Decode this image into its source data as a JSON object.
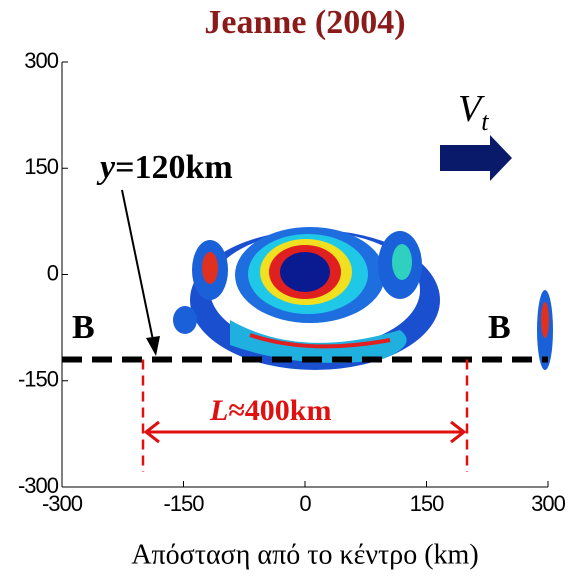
{
  "chart_data": {
    "type": "image",
    "title": "Jeanne (2004)",
    "xlabel": "Απόσταση από το κέντρο (km)",
    "xlim": [
      -300,
      300
    ],
    "ylim": [
      -300,
      300
    ],
    "xticks": [
      -300,
      -150,
      0,
      150,
      300
    ],
    "yticks": [
      -300,
      -150,
      0,
      150,
      300
    ],
    "annotations": {
      "cut_label": {
        "var": "y",
        "rest": "=120km"
      },
      "width_label": {
        "var": "L",
        "rest": "≈400km"
      },
      "motion_label": {
        "var": "V",
        "sub": "t"
      },
      "section_left": "B",
      "section_right": "B"
    },
    "reference_lines": {
      "y": -120,
      "x": [
        -200,
        200
      ]
    }
  }
}
